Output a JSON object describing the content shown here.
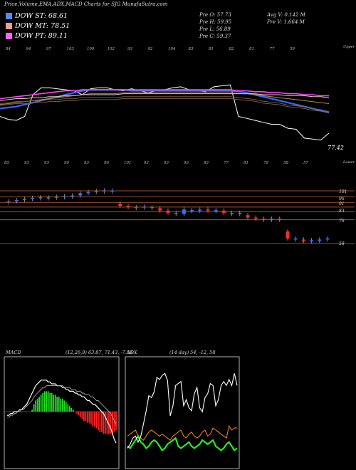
{
  "header": {
    "title": "Price,Volume,EMA,ADX,MACD Charts for SJG MunafaSutra.com",
    "dow_st": "DOW ST: 68.61",
    "dow_mt": "DOW MT: 78.51",
    "dow_pt": "DOW PT: 89.11",
    "pre_o": "Pre  O: 57.73",
    "pre_h": "Pre  H: 59.95",
    "pre_l": "Pre  L: 56.89",
    "pre_c": "Pre  C: 59.37",
    "avg_v": "Avg V: 0.142  M",
    "pre_v": "Pre  V: 1.664  M"
  },
  "colors": {
    "dow_st": "#4f8cff",
    "dow_mt": "#ff9999",
    "dow_pt": "#ff66ff",
    "up": "#3a6cff",
    "down": "#ff2a2a",
    "grid": "#c8643c"
  },
  "chart_data": [
    {
      "type": "line",
      "panel": "price-ema",
      "top_labels": [
        "84",
        "94",
        "97",
        "103",
        "100",
        "102",
        "93",
        "92",
        "104",
        "83",
        "81",
        "82",
        "81",
        "77",
        "59"
      ],
      "bottom_labels": [
        "85",
        "93",
        "93",
        "90",
        "93",
        "96",
        "101",
        "92",
        "93",
        "93",
        "83",
        "77",
        "81",
        "78",
        "58",
        "57"
      ],
      "top_right_label": "Upper",
      "bottom_right_label": "Lower",
      "last_value_label": "77.42",
      "series": [
        {
          "values": [
            70,
            67,
            66,
            70,
            92,
            99,
            99,
            98,
            97,
            96,
            92,
            98,
            99,
            99,
            97,
            96,
            98,
            96,
            94,
            96,
            97,
            99,
            100,
            97,
            96,
            95,
            100,
            101,
            102,
            70,
            68,
            66,
            64,
            62,
            62,
            58,
            57,
            48,
            47,
            46,
            53
          ]
        },
        {
          "values": [
            78,
            79,
            80,
            82,
            84,
            86,
            88,
            90,
            92,
            94,
            96,
            97,
            97,
            97,
            97,
            97,
            96,
            96,
            96,
            96,
            96,
            96,
            96,
            96,
            96,
            96,
            96,
            96,
            96,
            95,
            94,
            92,
            90,
            88,
            86,
            84,
            82,
            80,
            78,
            76,
            74
          ]
        },
        {
          "values": [
            82,
            83,
            84,
            85,
            86,
            87,
            88,
            89,
            90,
            91,
            92,
            93,
            93,
            93,
            93,
            94,
            94,
            94,
            94,
            94,
            94,
            94,
            94,
            94,
            94,
            94,
            94,
            94,
            94,
            93,
            93,
            92,
            91,
            90,
            89,
            88,
            87,
            86,
            85,
            84,
            83
          ]
        },
        {
          "values": [
            86,
            87,
            88,
            88,
            89,
            89,
            90,
            90,
            91,
            91,
            92,
            92,
            92,
            92,
            92,
            93,
            93,
            93,
            93,
            93,
            93,
            93,
            93,
            93,
            93,
            93,
            93,
            93,
            93,
            93,
            93,
            93,
            92,
            92,
            92,
            91,
            91,
            91,
            90,
            90,
            89
          ]
        },
        {
          "values": [
            88,
            89,
            90,
            91,
            92,
            93,
            94,
            95,
            96,
            96,
            97,
            97,
            97,
            97,
            97,
            97,
            97,
            97,
            97,
            97,
            97,
            97,
            97,
            97,
            97,
            97,
            97,
            97,
            97,
            96,
            96,
            95,
            95,
            94,
            94,
            93,
            93,
            92,
            92,
            91,
            91
          ]
        }
      ]
    },
    {
      "type": "candlestick",
      "panel": "price-candles",
      "level_labels": [
        "101",
        "96",
        "91",
        "83",
        "76",
        "58"
      ],
      "candles": [
        {
          "o": 91,
          "c": 92,
          "dir": "up"
        },
        {
          "o": 92,
          "c": 93,
          "dir": "up"
        },
        {
          "o": 93,
          "c": 94,
          "dir": "up"
        },
        {
          "o": 94,
          "c": 95,
          "dir": "up"
        },
        {
          "o": 95,
          "c": 95.5,
          "dir": "up"
        },
        {
          "o": 95,
          "c": 95.4,
          "dir": "up"
        },
        {
          "o": 95,
          "c": 96,
          "dir": "up"
        },
        {
          "o": 96,
          "c": 96.5,
          "dir": "up"
        },
        {
          "o": 96,
          "c": 97,
          "dir": "up"
        },
        {
          "o": 97,
          "c": 99,
          "dir": "up"
        },
        {
          "o": 99,
          "c": 100,
          "dir": "up"
        },
        {
          "o": 100,
          "c": 101,
          "dir": "up"
        },
        {
          "o": 101,
          "c": 101.4,
          "dir": "up"
        },
        {
          "o": 101,
          "c": 101.3,
          "dir": "up"
        },
        {
          "o": 90,
          "c": 88,
          "dir": "down"
        },
        {
          "o": 88,
          "c": 87,
          "dir": "down"
        },
        {
          "o": 87,
          "c": 86.5,
          "dir": "down"
        },
        {
          "o": 87,
          "c": 87.4,
          "dir": "up"
        },
        {
          "o": 87,
          "c": 86.5,
          "dir": "down"
        },
        {
          "o": 86,
          "c": 84,
          "dir": "down"
        },
        {
          "o": 84,
          "c": 82,
          "dir": "down"
        },
        {
          "o": 82,
          "c": 81.5,
          "dir": "down"
        },
        {
          "o": 81,
          "c": 85,
          "dir": "up"
        },
        {
          "o": 84,
          "c": 84.5,
          "dir": "up"
        },
        {
          "o": 84,
          "c": 84.8,
          "dir": "up"
        },
        {
          "o": 85,
          "c": 84,
          "dir": "down"
        },
        {
          "o": 84,
          "c": 84.5,
          "dir": "up"
        },
        {
          "o": 84,
          "c": 82,
          "dir": "down"
        },
        {
          "o": 82,
          "c": 81,
          "dir": "down"
        },
        {
          "o": 81,
          "c": 82,
          "dir": "up"
        },
        {
          "o": 80,
          "c": 78,
          "dir": "down"
        },
        {
          "o": 78,
          "c": 77,
          "dir": "down"
        },
        {
          "o": 77,
          "c": 76,
          "dir": "down"
        },
        {
          "o": 76,
          "c": 77,
          "dir": "up"
        },
        {
          "o": 77,
          "c": 76,
          "dir": "down"
        },
        {
          "o": 66,
          "c": 60,
          "dir": "down"
        },
        {
          "o": 60,
          "c": 59,
          "dir": "up"
        },
        {
          "o": 59,
          "c": 58,
          "dir": "down"
        },
        {
          "o": 58,
          "c": 58.5,
          "dir": "up"
        },
        {
          "o": 58,
          "c": 59,
          "dir": "up"
        },
        {
          "o": 59,
          "c": 60,
          "dir": "up"
        }
      ]
    },
    {
      "type": "bar",
      "panel": "macd",
      "label": "MACD",
      "params_text": "(12,26,9) 63.87, 71.43, -7.56",
      "histogram": [
        0,
        0,
        0,
        0,
        0,
        0,
        0,
        0,
        0,
        0,
        0,
        0,
        0,
        0,
        1,
        4,
        6,
        7,
        8,
        9,
        10,
        11,
        11,
        11,
        10,
        10,
        9,
        9,
        8,
        8,
        7,
        7,
        6,
        5,
        4,
        3,
        2,
        1,
        0,
        -1,
        -2,
        -3,
        -4,
        -5,
        -5,
        -6,
        -6,
        -7,
        -8,
        -8,
        -9,
        -10,
        -11,
        -11,
        -12,
        -12,
        -12,
        -12,
        -12,
        -12,
        -11,
        -10
      ],
      "macd_line": [
        -2,
        -2,
        -1,
        -1,
        0,
        0,
        0,
        1,
        1,
        2,
        3,
        4,
        6,
        8,
        10,
        12,
        14,
        15,
        16,
        17,
        17,
        17,
        17,
        16,
        16,
        15,
        15,
        15,
        14,
        14,
        14,
        13,
        13,
        12,
        12,
        11,
        11,
        11,
        10,
        10,
        9,
        9,
        8,
        8,
        7,
        6,
        6,
        5,
        4,
        4,
        3,
        2,
        1,
        0,
        -1,
        -3,
        -5,
        -7,
        -9,
        -12,
        -15,
        -17
      ],
      "signal_line": [
        -3,
        -3,
        -2,
        -2,
        -1,
        -1,
        0,
        0,
        1,
        1,
        2,
        3,
        4,
        5,
        6,
        8,
        9,
        10,
        11,
        12,
        13,
        13,
        14,
        14,
        14,
        14,
        14,
        14,
        14,
        14,
        14,
        14,
        13,
        13,
        13,
        13,
        12,
        12,
        12,
        11,
        11,
        11,
        10,
        10,
        9,
        9,
        9,
        8,
        8,
        7,
        6,
        6,
        5,
        4,
        3,
        2,
        1,
        0,
        -1,
        -3,
        -5,
        -7
      ]
    },
    {
      "type": "line",
      "panel": "adx",
      "label": "ADX",
      "params_text": "(14 day) 54,  -12,  58",
      "series": [
        {
          "values": [
            18,
            22,
            28,
            30,
            24,
            30,
            42,
            55,
            70,
            68,
            74,
            88,
            86,
            90,
            92,
            85,
            50,
            60,
            80,
            82,
            84,
            60,
            66,
            58,
            55,
            72,
            78,
            58,
            54,
            68,
            72,
            82,
            80,
            60,
            66,
            80,
            84,
            80,
            86,
            80,
            92,
            80
          ]
        },
        {
          "values": [
            60,
            58,
            62,
            66,
            70,
            64,
            62,
            58,
            60,
            64,
            66,
            64,
            60,
            56,
            58,
            62,
            64,
            66,
            68,
            60,
            58,
            60,
            62,
            64,
            60,
            58,
            60,
            62,
            66,
            64,
            62,
            64,
            66,
            60,
            58,
            56,
            58,
            62,
            64,
            60,
            56,
            58
          ]
        },
        {
          "values": [
            30,
            32,
            34,
            36,
            30,
            28,
            26,
            30,
            34,
            36,
            34,
            32,
            30,
            32,
            30,
            28,
            26,
            30,
            32,
            34,
            36,
            30,
            28,
            32,
            34,
            30,
            28,
            30,
            34,
            36,
            30,
            32,
            38,
            36,
            34,
            32,
            30,
            28,
            40,
            36,
            38,
            38
          ]
        }
      ]
    }
  ]
}
